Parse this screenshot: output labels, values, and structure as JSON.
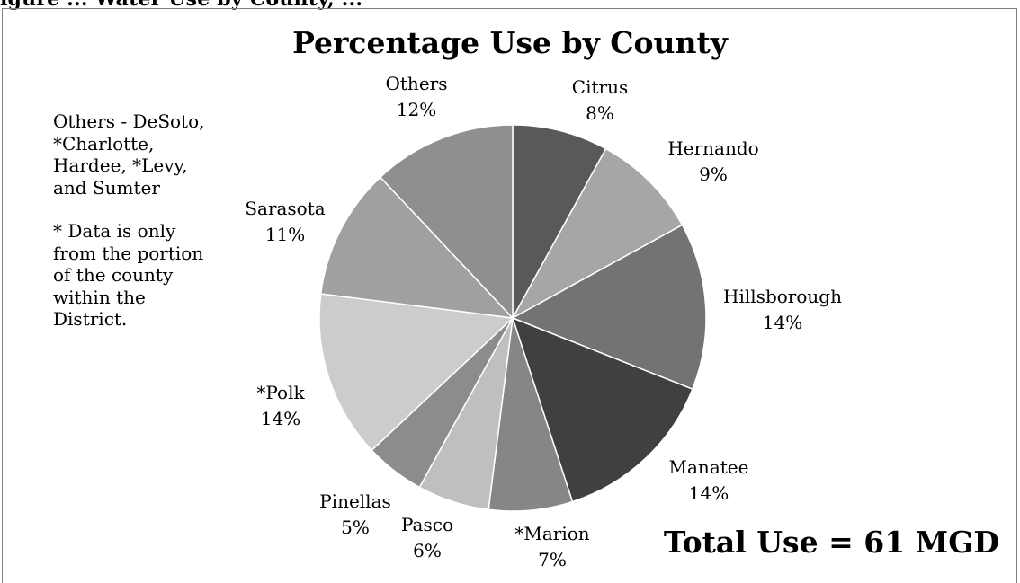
{
  "header_fragment": "igure ... Water Use by County, ...",
  "chart_data": {
    "type": "pie",
    "title": "Percentage Use by County",
    "slices": [
      {
        "label": "Citrus",
        "value": 8,
        "percent": "8%",
        "color": "#595959"
      },
      {
        "label": "Hernando",
        "value": 9,
        "percent": "9%",
        "color": "#a6a6a6"
      },
      {
        "label": "Hillsborough",
        "value": 14,
        "percent": "14%",
        "color": "#737373"
      },
      {
        "label": "Manatee",
        "value": 14,
        "percent": "14%",
        "color": "#404040"
      },
      {
        "label": "*Marion",
        "value": 7,
        "percent": "7%",
        "color": "#868686"
      },
      {
        "label": "Pasco",
        "value": 6,
        "percent": "6%",
        "color": "#bfbfbf"
      },
      {
        "label": "Pinellas",
        "value": 5,
        "percent": "5%",
        "color": "#8c8c8c"
      },
      {
        "label": "*Polk",
        "value": 14,
        "percent": "14%",
        "color": "#cccccc"
      },
      {
        "label": "Sarasota",
        "value": 11,
        "percent": "11%",
        "color": "#a0a0a0"
      },
      {
        "label": "Others",
        "value": 12,
        "percent": "12%",
        "color": "#8f8f8f"
      }
    ]
  },
  "notes": {
    "others": "Others - DeSoto, *Charlotte, Hardee, *Levy, and Sumter",
    "asterisk": "* Data is only from the portion of the county within the District."
  },
  "total": "Total Use = 61 MGD"
}
